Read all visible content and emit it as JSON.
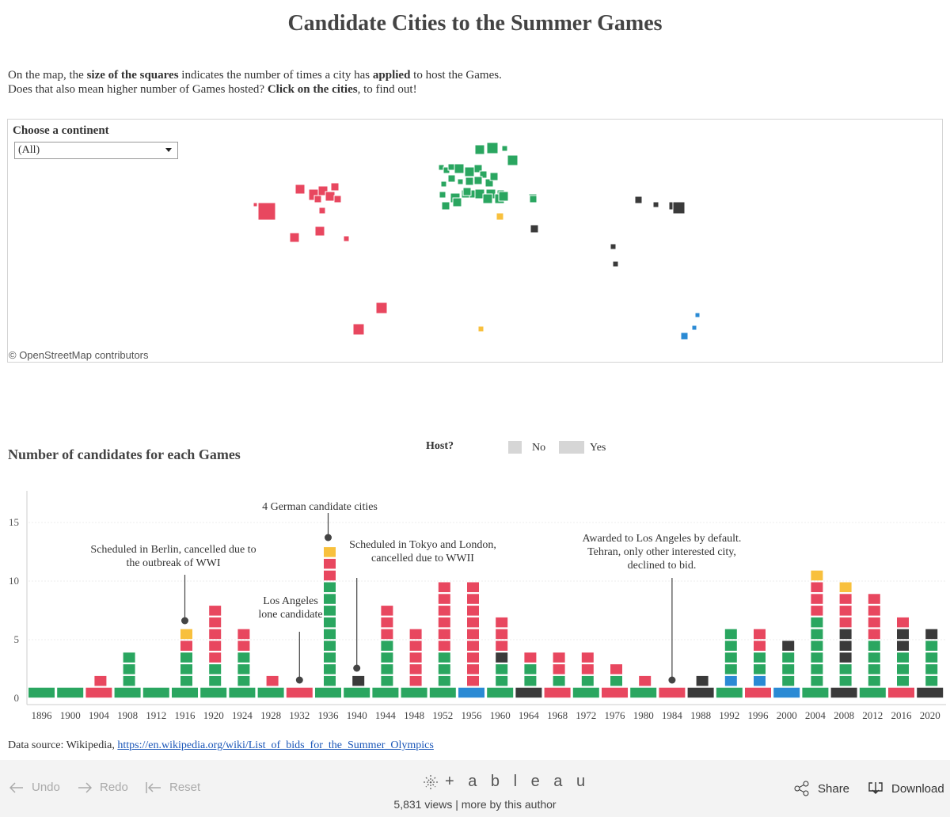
{
  "title": "Candidate Cities to the Summer Games",
  "intro": {
    "line1_a": "On the map, the ",
    "line1_b": "size of the squares",
    "line1_c": " indicates the number of times a city has ",
    "line1_d": "applied",
    "line1_e": " to host the Games.",
    "line2_a": "Does that also mean higher number of Games hosted? ",
    "line2_b": "Click on the cities",
    "line2_c": ", to find out!"
  },
  "map": {
    "filter_label": "Choose a continent",
    "filter_value": "(All)",
    "attribution": "© OpenStreetMap contributors"
  },
  "colors": {
    "red": "#e8475f",
    "green": "#2aa660",
    "dark": "#3a3a3a",
    "yellow": "#f8c03d",
    "blue": "#2a8ad4",
    "legend": "#d6d6d6"
  },
  "legend": {
    "title": "Host?",
    "no": "No",
    "yes": "Yes"
  },
  "chart_title": "Number of candidates for each Games",
  "chart_data": {
    "type": "bar",
    "subtype": "stacked-units",
    "ylim": [
      0,
      17
    ],
    "yticks": [
      0,
      5,
      10,
      15
    ],
    "categories": [
      "1896",
      "1900",
      "1904",
      "1908",
      "1912",
      "1916",
      "1920",
      "1924",
      "1928",
      "1932",
      "1936",
      "1940",
      "1944",
      "1948",
      "1952",
      "1956",
      "1960",
      "1964",
      "1968",
      "1972",
      "1976",
      "1980",
      "1984",
      "1988",
      "1992",
      "1996",
      "2000",
      "2004",
      "2008",
      "2012",
      "2016",
      "2020"
    ],
    "values": [
      1,
      1,
      2,
      4,
      1,
      6,
      8,
      6,
      2,
      1,
      13,
      2,
      8,
      6,
      10,
      10,
      7,
      4,
      4,
      4,
      3,
      2,
      1,
      2,
      6,
      6,
      5,
      11,
      10,
      9,
      7,
      6
    ],
    "host_continent": [
      "green",
      "green",
      "red",
      "green",
      "green",
      "green",
      "green",
      "green",
      "green",
      "red",
      "green",
      "green",
      "green",
      "green",
      "green",
      "blue",
      "green",
      "dark",
      "red",
      "green",
      "red",
      "green",
      "red",
      "dark",
      "green",
      "red",
      "blue",
      "green",
      "dark",
      "green",
      "red",
      "dark"
    ],
    "stacks": [
      [
        "green"
      ],
      [
        "green"
      ],
      [
        "red",
        "red"
      ],
      [
        "green",
        "green",
        "green",
        "green"
      ],
      [
        "green"
      ],
      [
        "green",
        "green",
        "green",
        "green",
        "red",
        "yellow"
      ],
      [
        "green",
        "green",
        "green",
        "red",
        "red",
        "red",
        "red",
        "red"
      ],
      [
        "green",
        "green",
        "green",
        "green",
        "red",
        "red"
      ],
      [
        "green",
        "red"
      ],
      [
        "red"
      ],
      [
        "green",
        "green",
        "green",
        "green",
        "green",
        "green",
        "green",
        "green",
        "green",
        "green",
        "red",
        "red",
        "yellow"
      ],
      [
        "green",
        "dark"
      ],
      [
        "green",
        "green",
        "green",
        "green",
        "green",
        "red",
        "red",
        "red"
      ],
      [
        "green",
        "red",
        "red",
        "red",
        "red",
        "red"
      ],
      [
        "green",
        "green",
        "green",
        "green",
        "red",
        "red",
        "red",
        "red",
        "red",
        "red"
      ],
      [
        "blue",
        "red",
        "red",
        "red",
        "red",
        "red",
        "red",
        "red",
        "red",
        "red"
      ],
      [
        "green",
        "green",
        "green",
        "dark",
        "red",
        "red",
        "red"
      ],
      [
        "dark",
        "green",
        "green",
        "red"
      ],
      [
        "red",
        "green",
        "red",
        "red"
      ],
      [
        "green",
        "green",
        "red",
        "red"
      ],
      [
        "red",
        "green",
        "red"
      ],
      [
        "green",
        "red"
      ],
      [
        "red"
      ],
      [
        "dark",
        "dark"
      ],
      [
        "green",
        "blue",
        "green",
        "green",
        "green",
        "green"
      ],
      [
        "red",
        "blue",
        "green",
        "green",
        "red",
        "red"
      ],
      [
        "blue",
        "green",
        "green",
        "green",
        "dark"
      ],
      [
        "green",
        "green",
        "green",
        "green",
        "green",
        "green",
        "green",
        "red",
        "red",
        "red",
        "yellow"
      ],
      [
        "dark",
        "green",
        "green",
        "dark",
        "dark",
        "dark",
        "red",
        "red",
        "red",
        "yellow"
      ],
      [
        "green",
        "green",
        "green",
        "green",
        "green",
        "red",
        "red",
        "red",
        "red"
      ],
      [
        "red",
        "green",
        "green",
        "green",
        "dark",
        "dark",
        "red"
      ],
      [
        "dark",
        "green",
        "green",
        "green",
        "green",
        "dark"
      ]
    ],
    "annotations": [
      {
        "lines": [
          "Scheduled in Berlin, cancelled due to",
          "the outbreak of WWI"
        ],
        "year": "1916"
      },
      {
        "lines": [
          "4 German candidate cities"
        ],
        "year": "1936"
      },
      {
        "lines": [
          "Los Angeles",
          "lone candidate"
        ],
        "year": "1932"
      },
      {
        "lines": [
          "Scheduled in Tokyo and London,",
          "cancelled due to WWII"
        ],
        "year": "1940"
      },
      {
        "lines": [
          "Awarded to Los Angeles by default.",
          "Tehran, only other interested city,",
          "declined to bid."
        ],
        "year": "1984"
      }
    ]
  },
  "source": {
    "label": "Data source: Wikipedia, ",
    "link": "https://en.wikipedia.org/wiki/List_of_bids_for_the_Summer_Olympics"
  },
  "footer": {
    "undo": "Undo",
    "redo": "Redo",
    "reset": "Reset",
    "logo": "+ a b l e a u",
    "views": "5,831 views | more by this author",
    "share": "Share",
    "download": "Download"
  }
}
